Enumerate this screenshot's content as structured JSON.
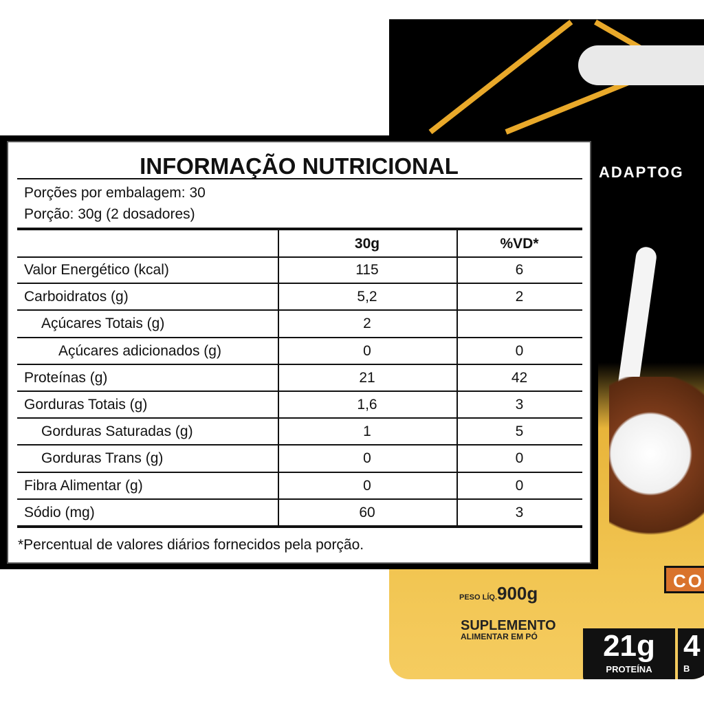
{
  "label": {
    "title": "INFORMAÇÃO NUTRICIONAL",
    "servings_per_package": "Porções por embalagem: 30",
    "serving_size": "Porção: 30g (2 dosadores)",
    "columns": [
      "",
      "30g",
      "%VD*"
    ],
    "rows": [
      {
        "name": "Valor Energético (kcal)",
        "amount": "115",
        "dv": "6",
        "indent": 0
      },
      {
        "name": "Carboidratos (g)",
        "amount": "5,2",
        "dv": "2",
        "indent": 0
      },
      {
        "name": "Açúcares Totais (g)",
        "amount": "2",
        "dv": "",
        "indent": 1
      },
      {
        "name": "Açúcares adicionados (g)",
        "amount": "0",
        "dv": "0",
        "indent": 2
      },
      {
        "name": "Proteínas (g)",
        "amount": "21",
        "dv": "42",
        "indent": 0
      },
      {
        "name": "Gorduras Totais (g)",
        "amount": "1,6",
        "dv": "3",
        "indent": 0
      },
      {
        "name": "Gorduras Saturadas (g)",
        "amount": "1",
        "dv": "5",
        "indent": 1
      },
      {
        "name": "Gorduras Trans (g)",
        "amount": "0",
        "dv": "0",
        "indent": 1
      },
      {
        "name": "Fibra Alimentar (g)",
        "amount": "0",
        "dv": "0",
        "indent": 0
      },
      {
        "name": "Sódio (mg)",
        "amount": "60",
        "dv": "3",
        "indent": 0
      }
    ],
    "footnote": "*Percentual de valores diários fornecidos pela porção."
  },
  "package": {
    "brand": "ADAPTOG",
    "flavor_partial": "CO",
    "net_weight_label": "PESO LÍQ.",
    "net_weight_value": "900g",
    "product_type_line1": "SUPLEMENTO",
    "product_type_line2": "ALIMENTAR EM PÓ",
    "protein_badge_value": "21g",
    "protein_badge_label": "PROTEÍNA",
    "second_badge_partial": "4",
    "second_badge_label_partial": "B",
    "colors": {
      "package_top": "#000000",
      "package_bottom": "#f2c653",
      "accent_gold": "#e9a92a",
      "flavor_band": "#d9732c"
    }
  }
}
